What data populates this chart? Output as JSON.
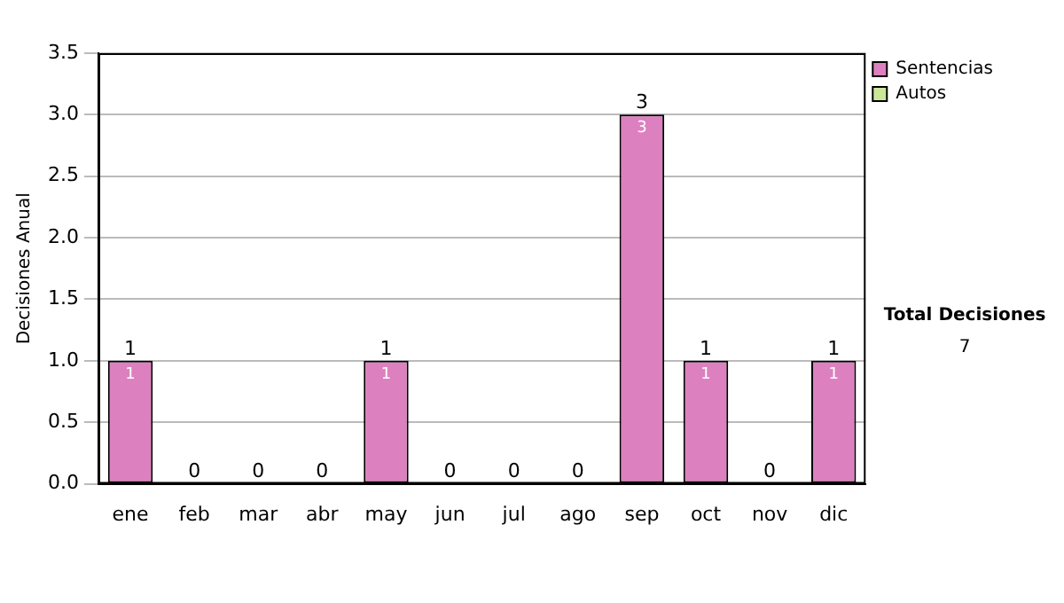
{
  "chart_data": {
    "type": "bar",
    "stacked": true,
    "ylabel": "Decisiones Anual",
    "categories": [
      "ene",
      "feb",
      "mar",
      "abr",
      "may",
      "jun",
      "jul",
      "ago",
      "sep",
      "oct",
      "nov",
      "dic"
    ],
    "series": [
      {
        "name": "Sentencias",
        "color": "#dd80bf",
        "values": [
          1,
          0,
          0,
          0,
          1,
          0,
          0,
          0,
          3,
          1,
          0,
          1
        ],
        "value_labels": [
          "1",
          null,
          null,
          null,
          "1",
          null,
          null,
          null,
          "3",
          "1",
          null,
          "1"
        ]
      },
      {
        "name": "Autos",
        "color": "#cce699",
        "values": [
          0,
          0,
          0,
          0,
          0,
          0,
          0,
          0,
          0,
          0,
          0,
          0
        ]
      }
    ],
    "totals": [
      "1",
      "0",
      "0",
      "0",
      "1",
      "0",
      "0",
      "0",
      "3",
      "1",
      "0",
      "1"
    ],
    "ylim": [
      0,
      3.5
    ],
    "yticks": [
      {
        "value": 0,
        "label": "0.0"
      },
      {
        "value": 0.5,
        "label": "0.5"
      },
      {
        "value": 1,
        "label": "1.0"
      },
      {
        "value": 1.5,
        "label": "1.5"
      },
      {
        "value": 2,
        "label": "2.0"
      },
      {
        "value": 2.5,
        "label": "2.5"
      },
      {
        "value": 3,
        "label": "3.0"
      },
      {
        "value": 3.5,
        "label": "3.5"
      }
    ],
    "grid": "y",
    "legend": "right",
    "annotations": [
      "Total Decisiones",
      "7"
    ]
  }
}
